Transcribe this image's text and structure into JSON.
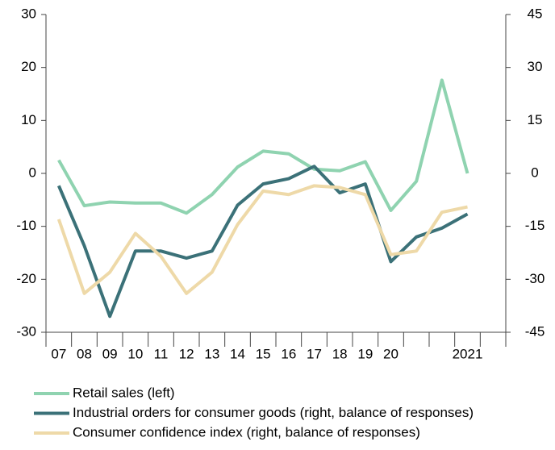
{
  "chart_data": {
    "type": "line",
    "categories": [
      "07",
      "08",
      "09",
      "10",
      "11",
      "12",
      "13",
      "14",
      "15",
      "16",
      "17",
      "18",
      "19",
      "20",
      null,
      null,
      "2021",
      null
    ],
    "series": [
      {
        "name": "Retail sales (left)",
        "color": "#8fd3b0",
        "axis": "y",
        "values": [
          2.5,
          -6.1,
          -5.4,
          -5.6,
          -5.6,
          -7.5,
          -4,
          1.2,
          4.2,
          3.7,
          0.8,
          0.5,
          2.2,
          -7,
          -1.5,
          17.6,
          0,
          null
        ]
      },
      {
        "name": "Industrial orders for consumer goods (right, balance of responses)",
        "color": "#3b7178",
        "axis": "y2",
        "values": [
          -3.5,
          -20.5,
          -40.5,
          -22,
          -22,
          -24,
          -22,
          -9,
          -3,
          -1.5,
          2,
          -5.5,
          -3,
          -25,
          -18,
          -15.5,
          -11.5,
          null
        ]
      },
      {
        "name": "Consumer confidence index (right, balance of responses)",
        "color": "#eed9a8",
        "axis": "y2",
        "values": [
          -13,
          -34,
          -28,
          -17,
          -23.5,
          -34,
          -28,
          -14.5,
          -5,
          -6,
          -3.5,
          -4,
          -6,
          -23,
          -22,
          -11,
          -9.5,
          null
        ]
      }
    ],
    "ylim": [
      -30,
      30
    ],
    "yticks": [
      -30,
      -20,
      -10,
      0,
      10,
      20,
      30
    ],
    "y2lim": [
      -45,
      45
    ],
    "y2ticks": [
      -45,
      -30,
      -15,
      0,
      15,
      30,
      45
    ]
  }
}
